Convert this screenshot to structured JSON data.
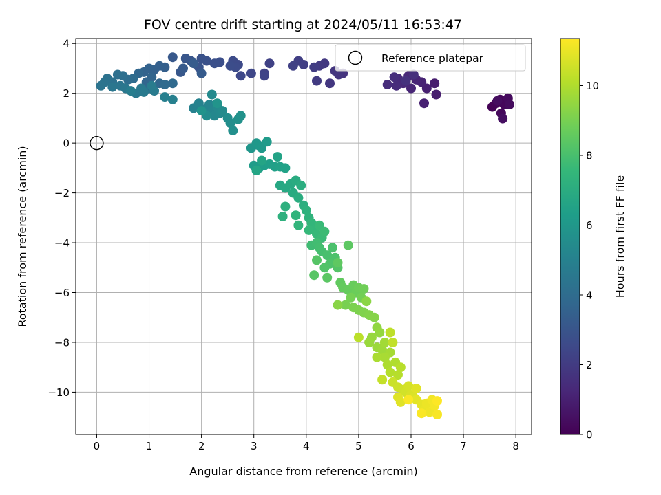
{
  "chart_data": {
    "type": "scatter",
    "title": "FOV centre drift starting at 2024/05/11 16:53:47",
    "xlabel": "Angular distance from reference (arcmin)",
    "ylabel": "Rotation from reference (arcmin)",
    "xlim": [
      -0.4,
      8.3
    ],
    "ylim": [
      -11.7,
      4.2
    ],
    "xticks": [
      0,
      1,
      2,
      3,
      4,
      5,
      6,
      7,
      8
    ],
    "yticks": [
      4,
      2,
      0,
      -2,
      -4,
      -6,
      -8,
      -10
    ],
    "grid": true,
    "legend": {
      "label": "Reference platepar",
      "position": "top-right",
      "marker": "open-circle"
    },
    "reference_point": {
      "x": 0,
      "y": 0
    },
    "colorbar": {
      "label": "Hours from first FF file",
      "range": [
        0,
        11.35
      ],
      "ticks": [
        0,
        2,
        4,
        6,
        8,
        10
      ],
      "colormap": [
        "#440154",
        "#482878",
        "#3e4989",
        "#31688e",
        "#26828e",
        "#1f9e89",
        "#35b779",
        "#6ece58",
        "#b5de2b",
        "#fde725"
      ]
    },
    "series": [
      {
        "marker": "filled-circle",
        "color_by": "hours",
        "columns": [
          "x",
          "y",
          "hours"
        ],
        "points": [
          [
            7.55,
            1.45,
            0.05
          ],
          [
            7.62,
            1.6,
            0.1
          ],
          [
            7.7,
            1.75,
            0.15
          ],
          [
            7.78,
            1.55,
            0.2
          ],
          [
            7.72,
            1.2,
            0.25
          ],
          [
            7.85,
            1.8,
            0.3
          ],
          [
            7.88,
            1.55,
            0.35
          ],
          [
            7.65,
            1.7,
            0.4
          ],
          [
            7.75,
            0.98,
            0.45
          ],
          [
            6.45,
            2.4,
            0.9
          ],
          [
            6.48,
            1.95,
            0.95
          ],
          [
            6.3,
            2.2,
            1.0
          ],
          [
            6.25,
            1.6,
            1.05
          ],
          [
            6.2,
            2.45,
            1.1
          ],
          [
            6.1,
            2.55,
            1.15
          ],
          [
            6.0,
            2.2,
            1.2
          ],
          [
            5.95,
            2.7,
            1.25
          ],
          [
            5.85,
            2.4,
            1.3
          ],
          [
            5.75,
            2.6,
            1.35
          ],
          [
            5.72,
            2.3,
            1.4
          ],
          [
            5.55,
            2.35,
            1.45
          ],
          [
            5.68,
            2.65,
            1.5
          ],
          [
            6.05,
            2.75,
            1.55
          ],
          [
            5.9,
            2.5,
            1.6
          ],
          [
            4.7,
            2.8,
            1.7
          ],
          [
            4.62,
            2.75,
            1.75
          ],
          [
            4.55,
            2.9,
            1.8
          ],
          [
            4.45,
            2.4,
            1.85
          ],
          [
            4.35,
            3.2,
            1.9
          ],
          [
            4.25,
            3.1,
            1.95
          ],
          [
            4.2,
            2.5,
            2.0
          ],
          [
            4.15,
            3.05,
            2.05
          ],
          [
            3.95,
            3.15,
            2.1
          ],
          [
            3.85,
            3.3,
            2.15
          ],
          [
            3.75,
            3.1,
            2.2
          ],
          [
            3.3,
            3.2,
            2.25
          ],
          [
            3.2,
            2.8,
            2.3
          ],
          [
            3.2,
            2.7,
            2.35
          ],
          [
            2.95,
            2.8,
            2.45
          ],
          [
            2.75,
            2.7,
            2.5
          ],
          [
            2.7,
            3.15,
            2.55
          ],
          [
            2.6,
            3.3,
            2.6
          ],
          [
            2.65,
            3.05,
            2.65
          ],
          [
            2.55,
            3.1,
            2.7
          ],
          [
            2.35,
            3.25,
            2.75
          ],
          [
            2.25,
            3.2,
            2.8
          ],
          [
            2.1,
            3.3,
            2.85
          ],
          [
            2.0,
            3.4,
            2.9
          ],
          [
            1.95,
            3.05,
            2.95
          ],
          [
            1.8,
            3.3,
            3.0
          ],
          [
            1.7,
            3.4,
            3.05
          ],
          [
            1.6,
            2.85,
            3.1
          ],
          [
            1.45,
            3.45,
            3.15
          ],
          [
            1.65,
            3.0,
            3.2
          ],
          [
            2.0,
            2.8,
            3.25
          ],
          [
            1.85,
            3.2,
            3.3
          ],
          [
            1.3,
            3.05,
            3.4
          ],
          [
            1.2,
            3.1,
            3.45
          ],
          [
            1.1,
            2.95,
            3.5
          ],
          [
            1.0,
            3.0,
            3.55
          ],
          [
            0.9,
            2.85,
            3.6
          ],
          [
            1.05,
            2.65,
            3.65
          ],
          [
            0.95,
            2.45,
            3.7
          ],
          [
            0.8,
            2.8,
            3.75
          ],
          [
            1.2,
            2.4,
            3.8
          ],
          [
            1.0,
            2.2,
            3.85
          ],
          [
            1.45,
            2.4,
            3.9
          ],
          [
            1.3,
            2.35,
            3.95
          ],
          [
            0.7,
            2.6,
            4.0
          ],
          [
            0.6,
            2.55,
            4.05
          ],
          [
            0.5,
            2.7,
            4.1
          ],
          [
            0.4,
            2.75,
            4.15
          ],
          [
            0.3,
            2.45,
            4.2
          ],
          [
            0.2,
            2.6,
            4.25
          ],
          [
            0.15,
            2.45,
            4.3
          ],
          [
            0.08,
            2.3,
            4.35
          ],
          [
            0.45,
            2.3,
            4.4
          ],
          [
            0.3,
            2.25,
            4.45
          ],
          [
            0.55,
            2.2,
            4.5
          ],
          [
            0.75,
            2.0,
            4.55
          ],
          [
            0.85,
            2.2,
            4.6
          ],
          [
            0.9,
            2.05,
            4.65
          ],
          [
            1.1,
            2.1,
            4.7
          ],
          [
            1.05,
            2.3,
            4.75
          ],
          [
            0.65,
            2.1,
            4.8
          ],
          [
            1.3,
            1.85,
            4.9
          ],
          [
            1.45,
            1.75,
            4.95
          ],
          [
            1.85,
            1.4,
            5.0
          ],
          [
            1.95,
            1.6,
            5.05
          ],
          [
            2.05,
            1.35,
            5.1
          ],
          [
            2.15,
            1.55,
            5.15
          ],
          [
            2.2,
            1.25,
            5.2
          ],
          [
            2.25,
            1.1,
            5.25
          ],
          [
            2.3,
            1.45,
            5.3
          ],
          [
            2.35,
            1.2,
            5.35
          ],
          [
            2.2,
            1.95,
            5.4
          ],
          [
            2.4,
            1.3,
            5.45
          ],
          [
            2.1,
            1.1,
            5.5
          ],
          [
            2.5,
            1.0,
            5.55
          ],
          [
            2.55,
            0.8,
            5.6
          ],
          [
            2.6,
            0.5,
            5.65
          ],
          [
            2.7,
            0.95,
            5.7
          ],
          [
            2.75,
            1.1,
            5.75
          ],
          [
            2.0,
            1.3,
            5.8
          ],
          [
            2.3,
            1.6,
            5.85
          ],
          [
            2.95,
            -0.2,
            5.95
          ],
          [
            3.05,
            0.0,
            6.0
          ],
          [
            3.1,
            -0.1,
            6.05
          ],
          [
            3.15,
            -0.2,
            6.1
          ],
          [
            3.25,
            0.05,
            6.15
          ],
          [
            3.0,
            -0.9,
            6.2
          ],
          [
            3.1,
            -1.0,
            6.25
          ],
          [
            3.2,
            -0.9,
            6.3
          ],
          [
            3.3,
            -0.85,
            6.35
          ],
          [
            3.4,
            -0.95,
            6.4
          ],
          [
            3.5,
            -0.95,
            6.45
          ],
          [
            3.6,
            -1.0,
            6.5
          ],
          [
            3.45,
            -0.55,
            6.55
          ],
          [
            3.15,
            -0.7,
            6.6
          ],
          [
            3.05,
            -1.1,
            6.65
          ],
          [
            3.5,
            -1.7,
            6.75
          ],
          [
            3.6,
            -1.8,
            6.8
          ],
          [
            3.7,
            -1.65,
            6.85
          ],
          [
            3.75,
            -2.0,
            6.9
          ],
          [
            3.8,
            -1.5,
            6.95
          ],
          [
            3.85,
            -2.2,
            7.0
          ],
          [
            3.9,
            -1.7,
            7.05
          ],
          [
            3.95,
            -2.5,
            7.1
          ],
          [
            3.6,
            -2.55,
            7.15
          ],
          [
            3.55,
            -2.95,
            7.2
          ],
          [
            4.0,
            -2.7,
            7.25
          ],
          [
            4.05,
            -3.0,
            7.3
          ],
          [
            3.8,
            -2.9,
            7.35
          ],
          [
            3.85,
            -3.3,
            7.4
          ],
          [
            4.1,
            -3.2,
            7.45
          ],
          [
            4.15,
            -3.5,
            7.5
          ],
          [
            4.05,
            -3.5,
            7.55
          ],
          [
            4.2,
            -3.65,
            7.6
          ],
          [
            4.25,
            -3.3,
            7.65
          ],
          [
            4.3,
            -3.8,
            7.7
          ],
          [
            4.35,
            -3.55,
            7.75
          ],
          [
            4.1,
            -4.1,
            7.8
          ],
          [
            4.2,
            -4.0,
            7.85
          ],
          [
            4.25,
            -4.2,
            7.9
          ],
          [
            4.3,
            -4.35,
            7.95
          ],
          [
            4.4,
            -4.5,
            8.0
          ],
          [
            4.5,
            -4.2,
            8.05
          ],
          [
            4.55,
            -4.6,
            8.1
          ],
          [
            4.45,
            -4.85,
            8.15
          ],
          [
            4.35,
            -5.0,
            8.2
          ],
          [
            4.6,
            -5.0,
            8.25
          ],
          [
            4.2,
            -4.7,
            8.3
          ],
          [
            4.15,
            -5.3,
            8.35
          ],
          [
            4.4,
            -5.4,
            8.4
          ],
          [
            4.8,
            -4.1,
            8.45
          ],
          [
            4.6,
            -4.8,
            8.5
          ],
          [
            4.65,
            -5.6,
            8.55
          ],
          [
            4.7,
            -5.8,
            8.6
          ],
          [
            4.8,
            -5.9,
            8.65
          ],
          [
            4.9,
            -5.7,
            8.7
          ],
          [
            4.95,
            -6.0,
            8.75
          ],
          [
            5.0,
            -5.8,
            8.8
          ],
          [
            5.1,
            -5.85,
            8.85
          ],
          [
            5.05,
            -6.2,
            8.9
          ],
          [
            4.85,
            -6.2,
            8.95
          ],
          [
            4.75,
            -6.5,
            9.0
          ],
          [
            4.9,
            -6.6,
            9.05
          ],
          [
            5.0,
            -6.7,
            9.1
          ],
          [
            5.1,
            -6.8,
            9.15
          ],
          [
            5.2,
            -6.9,
            9.2
          ],
          [
            5.3,
            -7.0,
            9.25
          ],
          [
            4.6,
            -6.5,
            9.3
          ],
          [
            5.15,
            -6.35,
            9.35
          ],
          [
            5.35,
            -7.4,
            9.45
          ],
          [
            5.4,
            -7.6,
            9.5
          ],
          [
            5.25,
            -7.8,
            9.55
          ],
          [
            5.2,
            -8.0,
            9.6
          ],
          [
            5.35,
            -8.2,
            9.65
          ],
          [
            5.45,
            -8.3,
            9.7
          ],
          [
            5.5,
            -8.0,
            9.75
          ],
          [
            5.6,
            -8.4,
            9.8
          ],
          [
            5.5,
            -8.6,
            9.85
          ],
          [
            5.35,
            -8.6,
            9.9
          ],
          [
            5.55,
            -8.9,
            9.95
          ],
          [
            5.7,
            -8.8,
            10.0
          ],
          [
            5.6,
            -9.2,
            10.05
          ],
          [
            5.75,
            -9.3,
            10.1
          ],
          [
            5.8,
            -9.0,
            10.15
          ],
          [
            5.0,
            -7.8,
            10.2
          ],
          [
            5.6,
            -7.6,
            10.25
          ],
          [
            5.65,
            -8.0,
            10.3
          ],
          [
            5.45,
            -9.5,
            10.35
          ],
          [
            5.65,
            -9.6,
            10.45
          ],
          [
            5.75,
            -9.8,
            10.5
          ],
          [
            5.85,
            -9.9,
            10.55
          ],
          [
            5.9,
            -10.0,
            10.6
          ],
          [
            5.95,
            -9.75,
            10.65
          ],
          [
            6.0,
            -10.1,
            10.7
          ],
          [
            6.05,
            -10.2,
            10.75
          ],
          [
            5.75,
            -10.2,
            10.8
          ],
          [
            5.8,
            -10.4,
            10.85
          ],
          [
            6.1,
            -10.3,
            10.9
          ],
          [
            6.2,
            -10.5,
            10.95
          ],
          [
            6.25,
            -10.7,
            11.0
          ],
          [
            6.3,
            -10.45,
            11.05
          ],
          [
            6.35,
            -10.8,
            11.1
          ],
          [
            6.4,
            -10.3,
            11.15
          ],
          [
            6.45,
            -10.55,
            11.2
          ],
          [
            6.5,
            -10.9,
            11.25
          ],
          [
            6.2,
            -10.85,
            11.3
          ],
          [
            6.5,
            -10.35,
            11.35
          ],
          [
            5.95,
            -10.3,
            11.3
          ],
          [
            6.1,
            -9.85,
            10.85
          ]
        ]
      }
    ]
  }
}
